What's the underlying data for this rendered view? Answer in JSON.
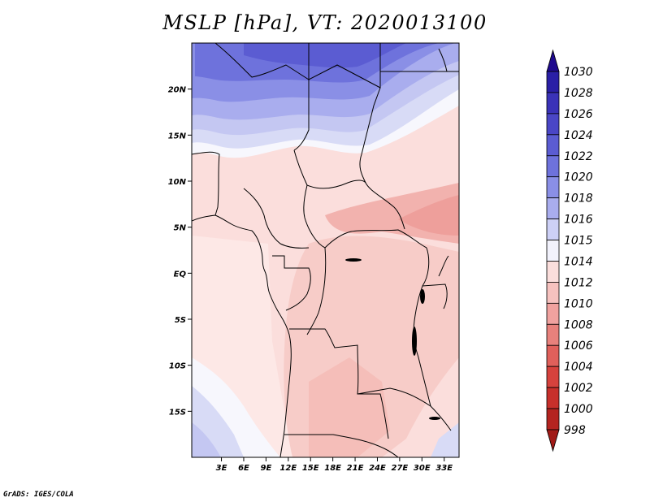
{
  "title": "MSLP [hPa], VT: 2020013100",
  "credit": "GrADS: IGES/COLA",
  "map": {
    "lon_range": [
      -1,
      35
    ],
    "lat_range": [
      -20,
      25
    ],
    "x_ticks": [
      "3E",
      "6E",
      "9E",
      "12E",
      "15E",
      "18E",
      "21E",
      "24E",
      "27E",
      "30E",
      "33E"
    ],
    "x_tick_values": [
      3,
      6,
      9,
      12,
      15,
      18,
      21,
      24,
      27,
      30,
      33
    ],
    "y_ticks": [
      "20N",
      "15N",
      "10N",
      "5N",
      "EQ",
      "5S",
      "10S",
      "15S"
    ],
    "y_tick_values": [
      20,
      15,
      10,
      5,
      0,
      -5,
      -10,
      -15
    ],
    "field": "mean sea level pressure",
    "units": "hPa"
  },
  "colorbar": {
    "levels": [
      "1030",
      "1028",
      "1026",
      "1024",
      "1022",
      "1020",
      "1018",
      "1016",
      "1015",
      "1014",
      "1012",
      "1010",
      "1008",
      "1006",
      "1004",
      "1002",
      "1000",
      "998"
    ],
    "colors": [
      "#1f0a8e",
      "#2a1fa6",
      "#3a32b8",
      "#4a46c6",
      "#5b5cd2",
      "#6e72dc",
      "#8a8fe6",
      "#a9adee",
      "#cdd0f6",
      "#f2f2fc",
      "#fbdedc",
      "#f6c2bf",
      "#f0a29f",
      "#e8817c",
      "#e0605b",
      "#d6423d",
      "#c7302b",
      "#b42420",
      "#a11a17"
    ]
  }
}
